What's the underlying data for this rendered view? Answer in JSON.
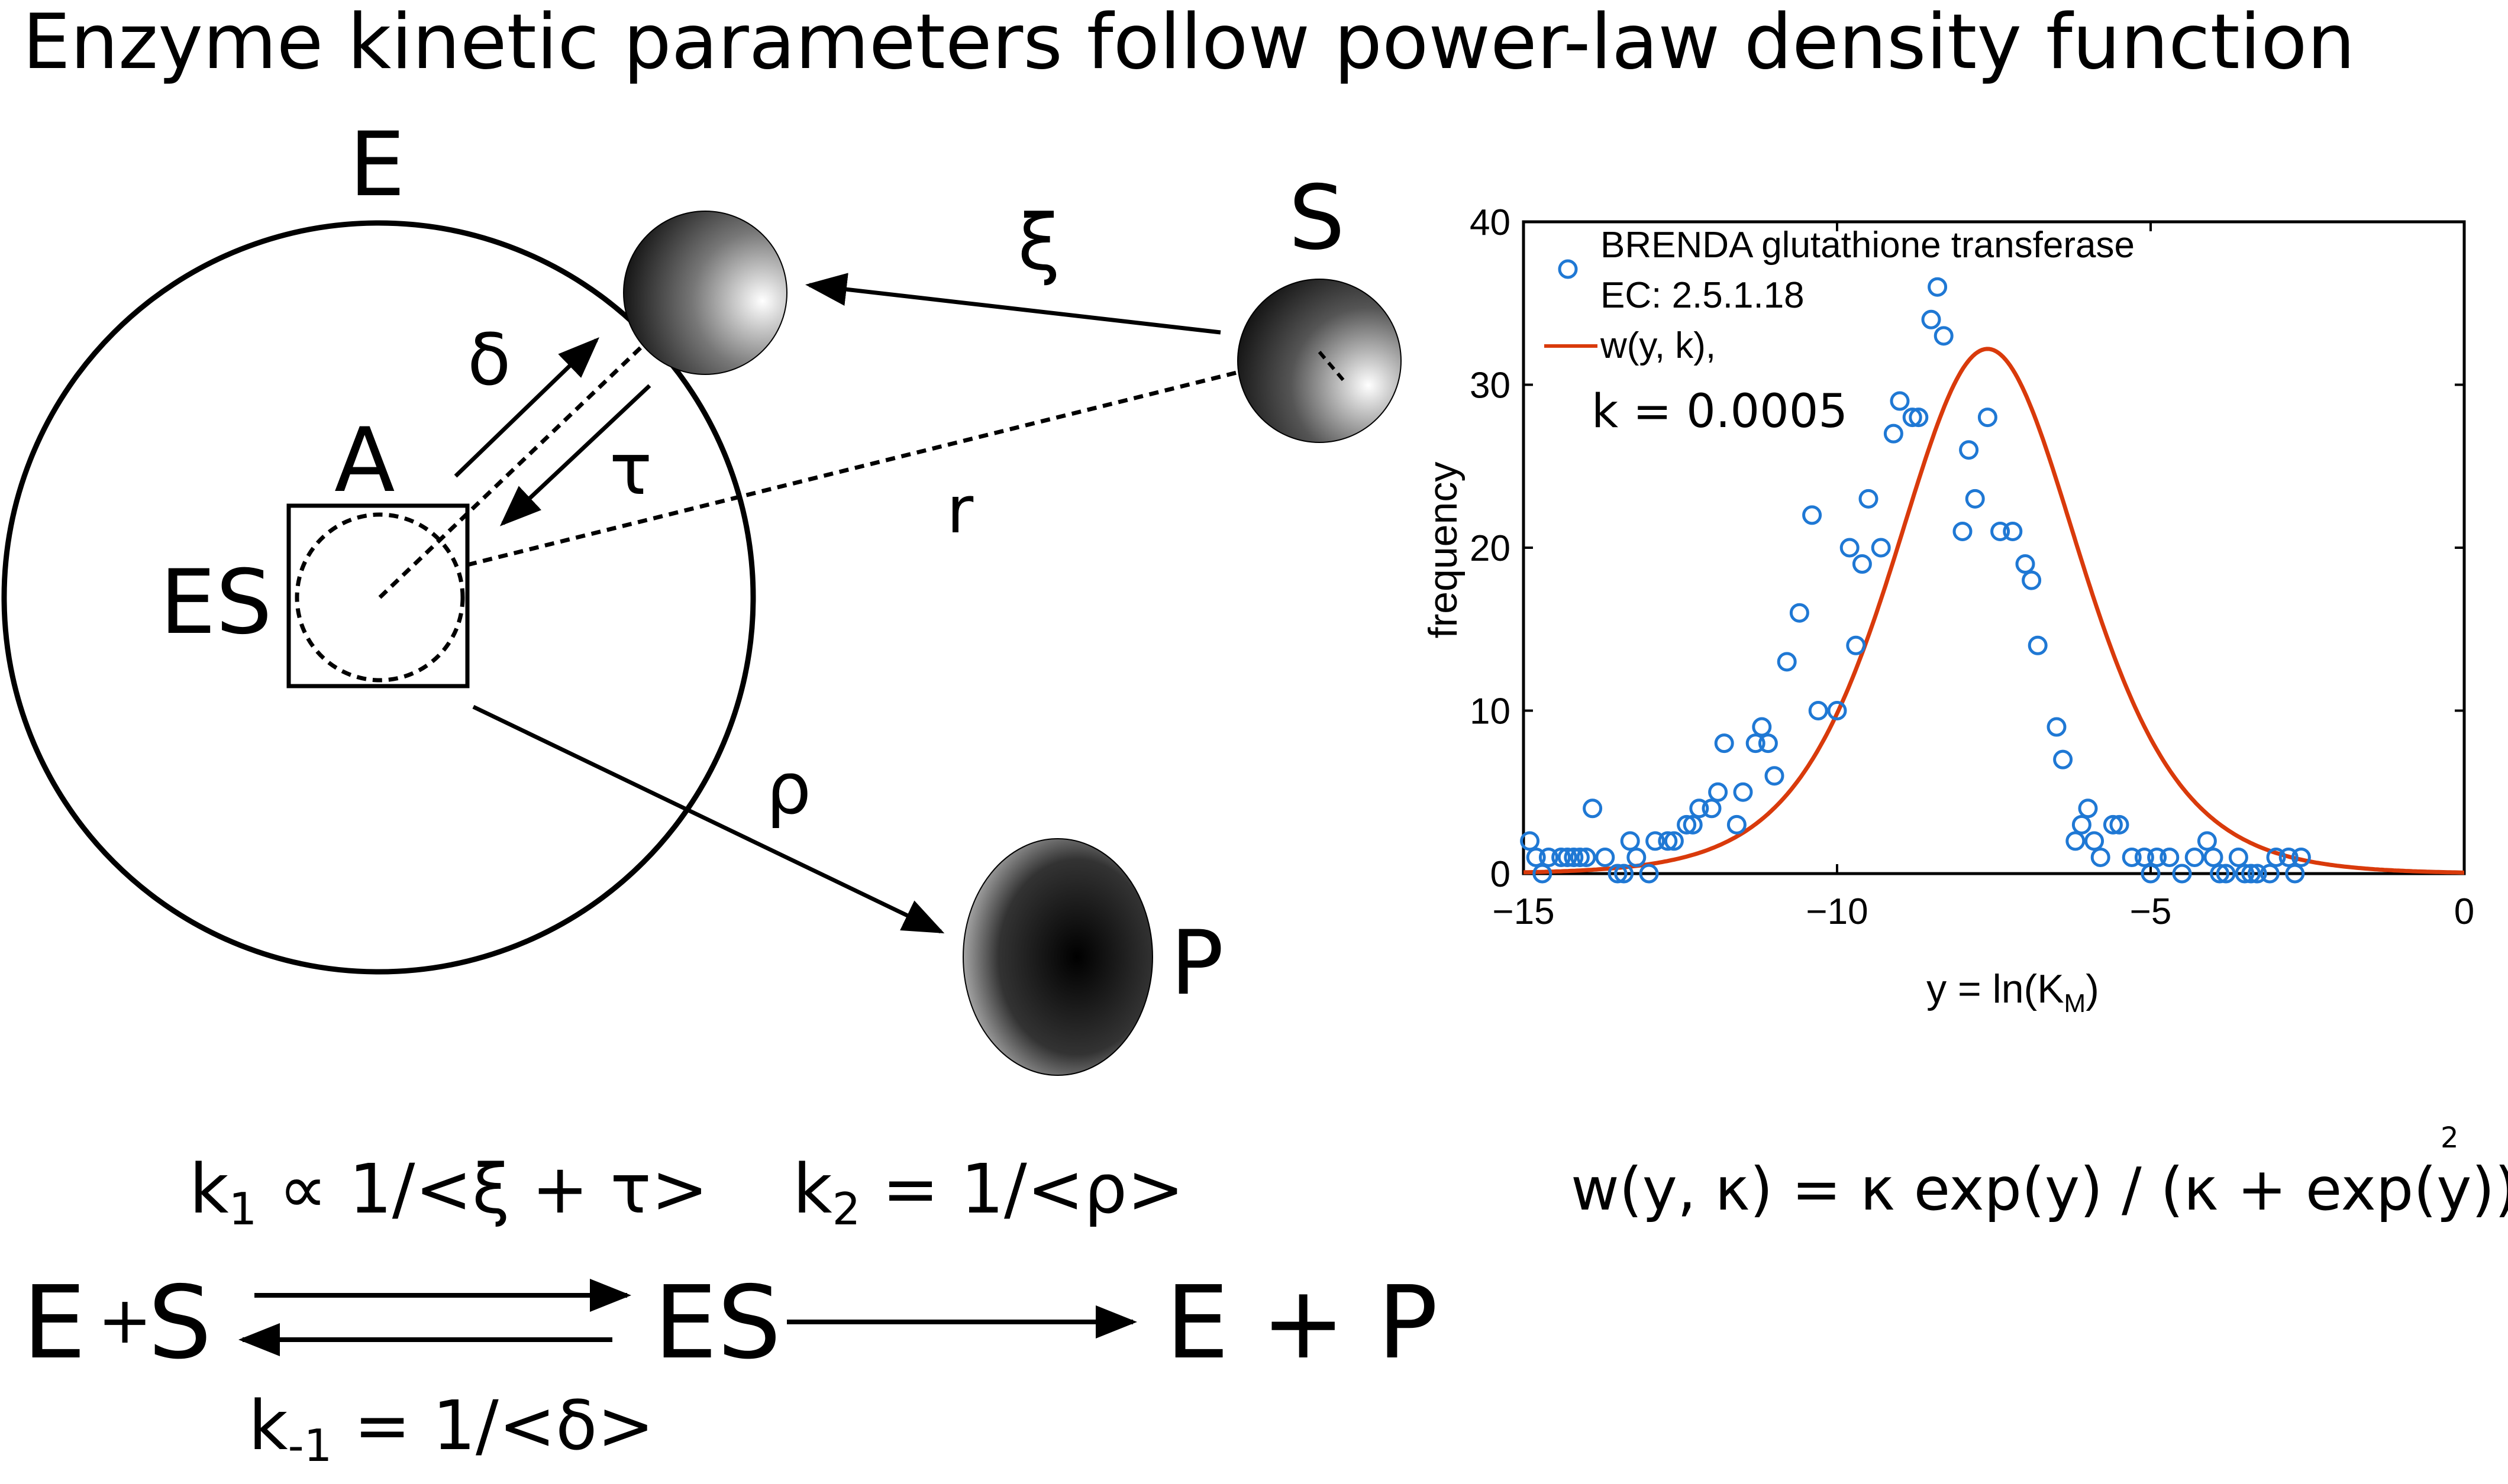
{
  "title": "Enzyme kinetic parameters follow power-law density function",
  "diagram": {
    "enzyme_label": "E",
    "substrate_label": "S",
    "active_site_label": "A",
    "complex_label": "ES",
    "product_label": "P",
    "xi_label": "ξ",
    "delta_label": "δ",
    "tau_label": "τ",
    "r_label": "r",
    "rho_label": "ρ"
  },
  "scheme": {
    "k1": "k",
    "k1_sub": "1",
    "k1_rest": " ∝ 1/<ξ + τ>",
    "k2": "k",
    "k2_sub": "2",
    "k2_rest": " = 1/<ρ>",
    "km1": "k",
    "km1_sub": "-1",
    "km1_rest": " = 1/<δ>",
    "left_E": "E",
    "left_plus": "+",
    "left_S": "S",
    "middle": "ES",
    "right": "E + P"
  },
  "formula": {
    "text": "w(y, κ) = κ exp(y) / (κ + exp(y))",
    "exponent": "2"
  },
  "chart_data": {
    "type": "scatter",
    "xlim": [
      -15,
      0
    ],
    "ylim": [
      0,
      40
    ],
    "x_ticks": [
      -15,
      -10,
      -5,
      0
    ],
    "x_tick_labels": [
      "−15",
      "−10",
      "−5",
      "0"
    ],
    "y_ticks": [
      0,
      10,
      20,
      30,
      40
    ],
    "ylabel": "frequency",
    "xlabel_main": "y = ln(K",
    "xlabel_sub": "M",
    "xlabel_end": ")",
    "legend_placement": "top-left",
    "legend": {
      "data_name_line1": "BRENDA glutathione transferase",
      "data_name_line2": "EC: 2.5.1.18",
      "fit_name": "w(y, k),",
      "k_text": "k = 0.0005"
    },
    "colors": {
      "data": "#1f78d4",
      "fit": "#d93a0b"
    },
    "fit": {
      "k": 0.0005,
      "peak": 32.2
    },
    "points": [
      [
        -14.9,
        2
      ],
      [
        -14.8,
        1
      ],
      [
        -14.7,
        0
      ],
      [
        -14.6,
        1
      ],
      [
        -14.4,
        1
      ],
      [
        -14.3,
        1
      ],
      [
        -14.2,
        1
      ],
      [
        -14.1,
        1
      ],
      [
        -14.0,
        1
      ],
      [
        -13.9,
        4
      ],
      [
        -13.7,
        1
      ],
      [
        -13.5,
        0
      ],
      [
        -13.4,
        0
      ],
      [
        -13.3,
        2
      ],
      [
        -13.2,
        1
      ],
      [
        -13.0,
        0
      ],
      [
        -12.9,
        2
      ],
      [
        -12.7,
        2
      ],
      [
        -12.6,
        2
      ],
      [
        -12.4,
        3
      ],
      [
        -12.3,
        3
      ],
      [
        -12.2,
        4
      ],
      [
        -12.0,
        4
      ],
      [
        -11.9,
        5
      ],
      [
        -11.8,
        8
      ],
      [
        -11.6,
        3
      ],
      [
        -11.5,
        5
      ],
      [
        -11.3,
        8
      ],
      [
        -11.2,
        9
      ],
      [
        -11.1,
        8
      ],
      [
        -11.0,
        6
      ],
      [
        -10.8,
        13
      ],
      [
        -10.6,
        16
      ],
      [
        -10.4,
        22
      ],
      [
        -10.3,
        10
      ],
      [
        -10.0,
        10
      ],
      [
        -9.8,
        20
      ],
      [
        -9.7,
        14
      ],
      [
        -9.6,
        19
      ],
      [
        -9.5,
        23
      ],
      [
        -9.3,
        20
      ],
      [
        -9.1,
        27
      ],
      [
        -9.0,
        29
      ],
      [
        -8.8,
        28
      ],
      [
        -8.7,
        28
      ],
      [
        -8.5,
        34
      ],
      [
        -8.4,
        36
      ],
      [
        -8.3,
        33
      ],
      [
        -8.0,
        21
      ],
      [
        -7.9,
        26
      ],
      [
        -7.8,
        23
      ],
      [
        -7.6,
        28
      ],
      [
        -7.4,
        21
      ],
      [
        -7.2,
        21
      ],
      [
        -7.0,
        19
      ],
      [
        -6.9,
        18
      ],
      [
        -6.8,
        14
      ],
      [
        -6.5,
        9
      ],
      [
        -6.4,
        7
      ],
      [
        -6.2,
        2
      ],
      [
        -6.1,
        3
      ],
      [
        -6.0,
        4
      ],
      [
        -5.9,
        2
      ],
      [
        -5.8,
        1
      ],
      [
        -5.6,
        3
      ],
      [
        -5.5,
        3
      ],
      [
        -5.3,
        1
      ],
      [
        -5.1,
        1
      ],
      [
        -5.0,
        0
      ],
      [
        -4.9,
        1
      ],
      [
        -4.7,
        1
      ],
      [
        -4.5,
        0
      ],
      [
        -4.3,
        1
      ],
      [
        -4.1,
        2
      ],
      [
        -4.0,
        1
      ],
      [
        -3.9,
        0
      ],
      [
        -3.8,
        0
      ],
      [
        -3.6,
        1
      ],
      [
        -3.5,
        0
      ],
      [
        -3.4,
        0
      ],
      [
        -3.3,
        0
      ],
      [
        -3.1,
        0
      ],
      [
        -3.0,
        1
      ],
      [
        -2.8,
        1
      ],
      [
        -2.7,
        0
      ],
      [
        -2.6,
        1
      ]
    ]
  }
}
